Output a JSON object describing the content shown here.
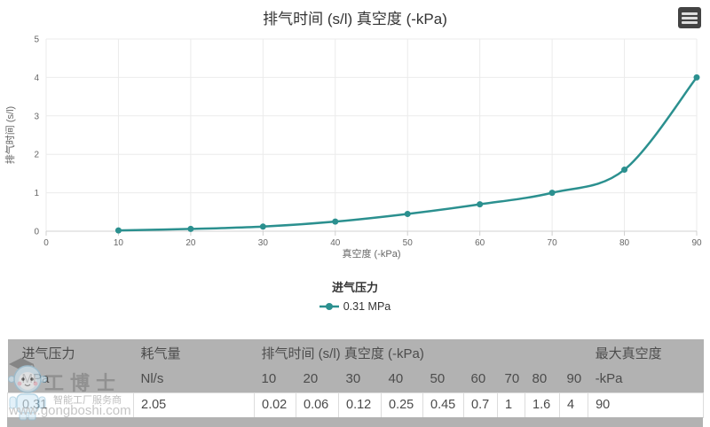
{
  "chart": {
    "title": "排气时间 (s/l) 真空度 (-kPa)",
    "menu_button": {
      "icon": "hamburger-menu-icon"
    },
    "legend": {
      "title": "进气压力",
      "items": [
        {
          "label": "0.31 MPa",
          "color": "#2b908f"
        }
      ]
    }
  },
  "chart_data": {
    "type": "line",
    "title": "排气时间 (s/l) 真空度 (-kPa)",
    "xlabel": "真空度 (-kPa)",
    "ylabel": "排气时间 (s/l)",
    "xlim": [
      0,
      90
    ],
    "ylim": [
      0,
      5
    ],
    "xticks": [
      0,
      10,
      20,
      30,
      40,
      50,
      60,
      70,
      80,
      90
    ],
    "yticks": [
      0,
      1,
      2,
      3,
      4,
      5
    ],
    "grid": true,
    "legend_position": "bottom",
    "legend_title": "进气压力",
    "series": [
      {
        "name": "0.31 MPa",
        "color": "#2b908f",
        "x": [
          10,
          20,
          30,
          40,
          50,
          60,
          70,
          80,
          90
        ],
        "y": [
          0.02,
          0.06,
          0.12,
          0.25,
          0.45,
          0.7,
          1,
          1.6,
          4
        ]
      }
    ]
  },
  "theme": {
    "series_color": "#2b908f",
    "grid_color": "#ebebeb",
    "axis_line_color": "#d0d0d0",
    "header_bg": "#b2b2b2"
  },
  "table": {
    "group_headers": [
      {
        "label": "进气压力",
        "span": 1
      },
      {
        "label": "耗气量",
        "span": 1
      },
      {
        "label": "排气时间 (s/l) 真空度 (-kPa)",
        "span": 9
      },
      {
        "label": "最大真空度",
        "span": 1
      }
    ],
    "unit_headers": [
      "MPa",
      "Nl/s",
      "10",
      "20",
      "30",
      "40",
      "50",
      "60",
      "70",
      "80",
      "90",
      "-kPa"
    ],
    "rows": [
      [
        "0.31",
        "2.05",
        "0.02",
        "0.06",
        "0.12",
        "0.25",
        "0.45",
        "0.7",
        "1",
        "1.6",
        "4",
        "90"
      ]
    ]
  },
  "watermark": {
    "brand": "工博士",
    "tagline": "智能工厂服务商",
    "url": "www.gongboshi.com"
  }
}
